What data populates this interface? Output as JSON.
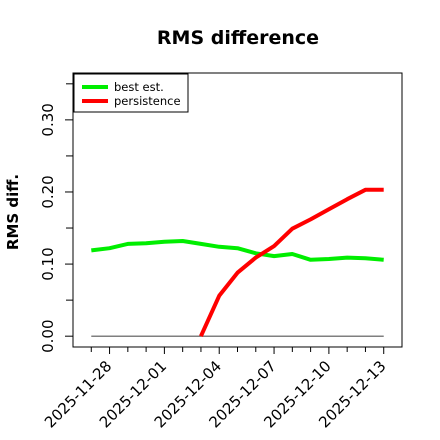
{
  "chart_data": {
    "type": "line",
    "title": "RMS difference",
    "xlabel": "",
    "ylabel": "RMS diff.",
    "x": [
      "2025-11-27",
      "2025-11-28",
      "2025-11-29",
      "2025-11-30",
      "2025-12-01",
      "2025-12-02",
      "2025-12-03",
      "2025-12-04",
      "2025-12-05",
      "2025-12-06",
      "2025-12-07",
      "2025-12-08",
      "2025-12-09",
      "2025-12-10",
      "2025-12-11",
      "2025-12-12",
      "2025-12-13"
    ],
    "xlim": [
      "2025-11-26",
      "2025-12-14"
    ],
    "x_ticks": [
      "2025-11-28",
      "2025-12-01",
      "2025-12-04",
      "2025-12-07",
      "2025-12-10",
      "2025-12-13"
    ],
    "ylim": [
      -0.015,
      0.365
    ],
    "y_ticks": [
      "0.00",
      "0.10",
      "0.20",
      "0.30"
    ],
    "y_tick_values": [
      0.0,
      0.1,
      0.2,
      0.3
    ],
    "y_minor_ticks": [
      0.05,
      0.15,
      0.25,
      0.35
    ],
    "grid": false,
    "legend_position": "top-left",
    "reference_line": {
      "y": 0.0,
      "color": "#555555"
    },
    "series": [
      {
        "name": "best est.",
        "color": "#00ee00",
        "values": [
          0.119,
          0.122,
          0.128,
          0.129,
          0.131,
          0.132,
          0.128,
          0.124,
          0.122,
          0.115,
          0.111,
          0.114,
          0.106,
          0.107,
          0.109,
          0.108,
          0.106
        ]
      },
      {
        "name": "persistence",
        "color": "#ff0000",
        "values": [
          null,
          null,
          null,
          null,
          null,
          null,
          0.0,
          0.056,
          0.088,
          0.109,
          0.125,
          0.149,
          0.162,
          0.176,
          0.19,
          0.203,
          0.203
        ]
      }
    ]
  }
}
